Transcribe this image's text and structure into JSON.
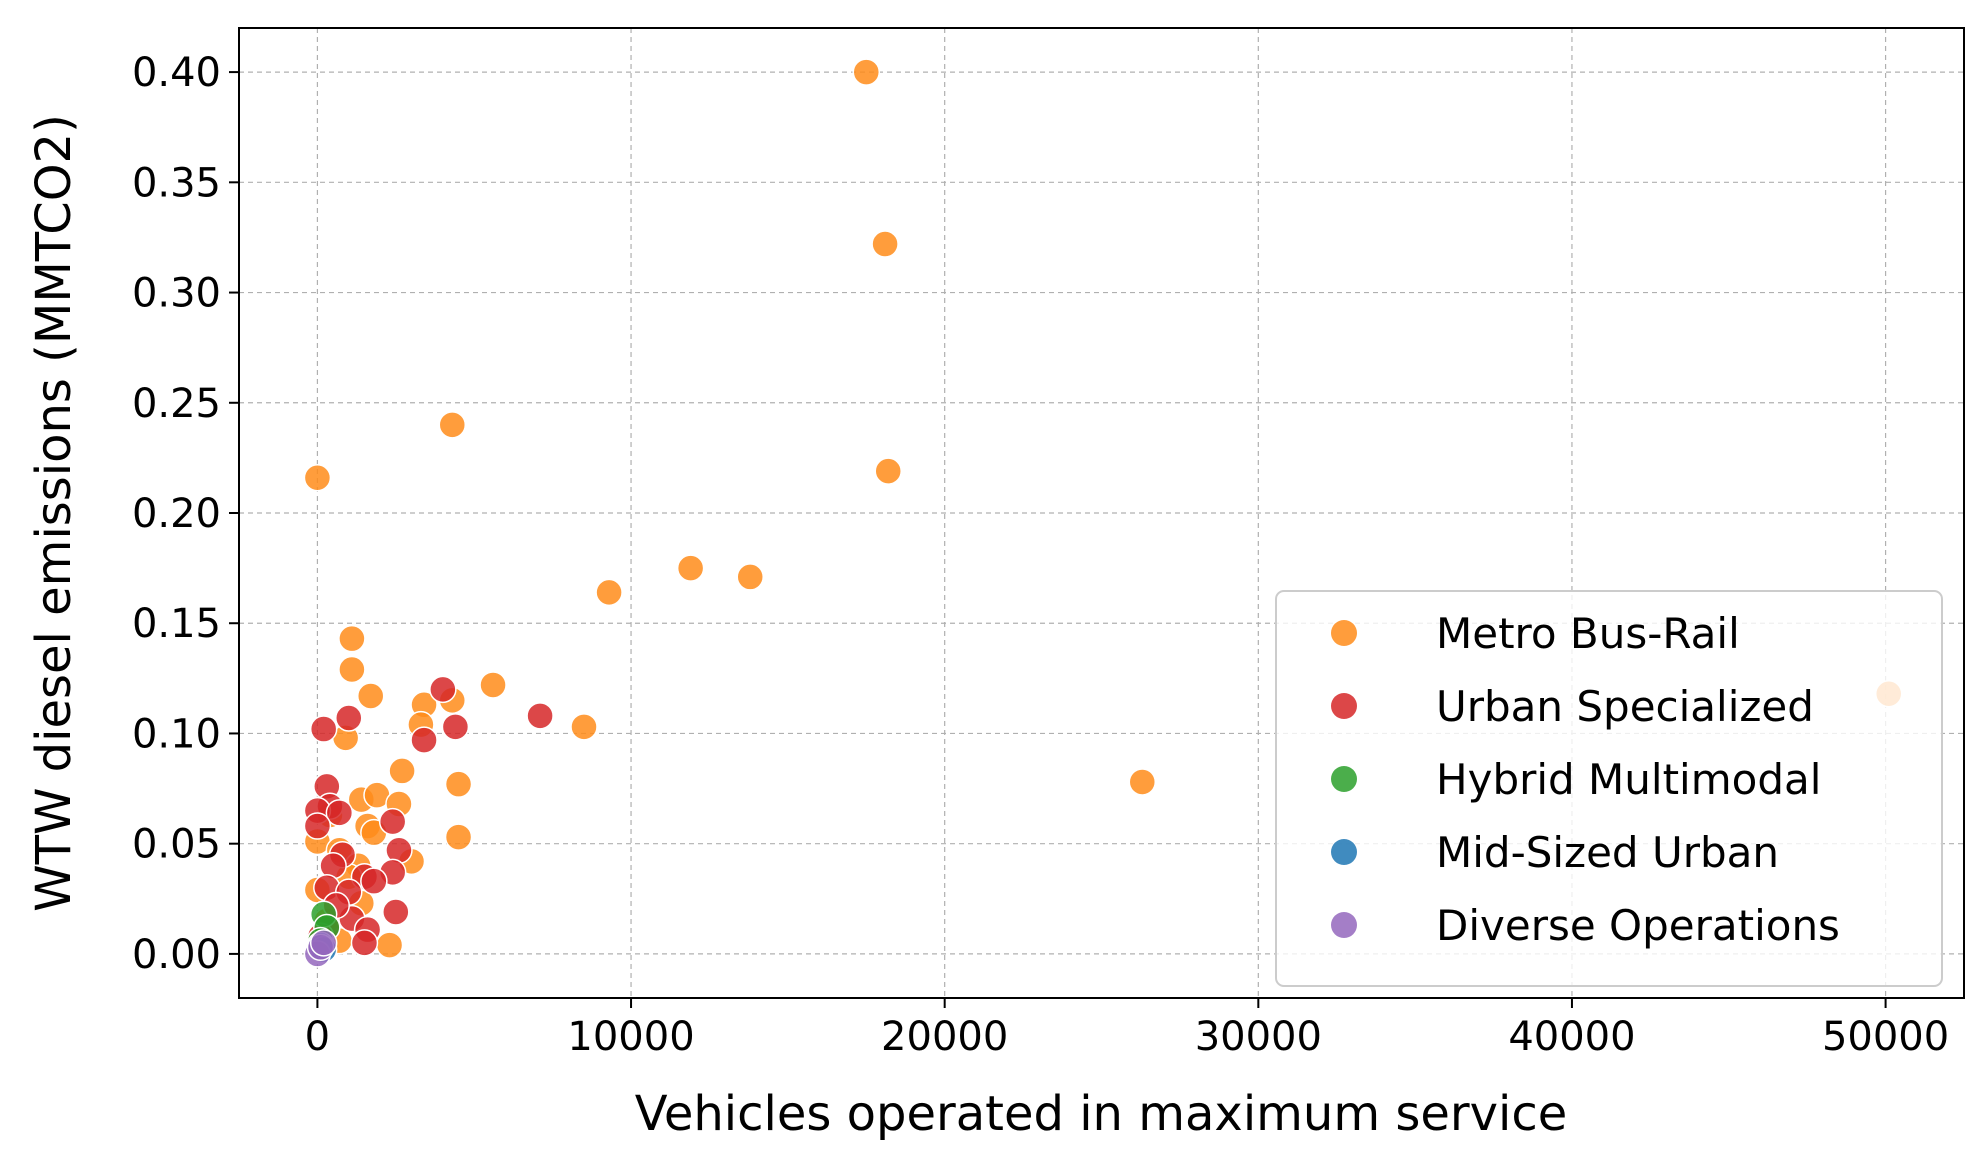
{
  "chart_data": {
    "type": "scatter",
    "xlabel": "Vehicles operated in maximum service",
    "ylabel": "WTW diesel emissions (MMTCO2)",
    "xlim": [
      -2500,
      52500
    ],
    "ylim": [
      -0.02,
      0.42
    ],
    "x_ticks": [
      0,
      10000,
      20000,
      30000,
      40000,
      50000
    ],
    "y_ticks": [
      "0.00",
      "0.05",
      "0.10",
      "0.15",
      "0.20",
      "0.25",
      "0.30",
      "0.35",
      "0.40"
    ],
    "grid": true,
    "legend_position": "lower-right",
    "series": [
      {
        "name": "Metro Bus-Rail",
        "color": "#ff8c1a",
        "points": [
          [
            17500,
            0.4
          ],
          [
            18100,
            0.322
          ],
          [
            4300,
            0.24
          ],
          [
            18200,
            0.219
          ],
          [
            0,
            0.216
          ],
          [
            11900,
            0.175
          ],
          [
            13800,
            0.171
          ],
          [
            9300,
            0.164
          ],
          [
            1100,
            0.143
          ],
          [
            1100,
            0.129
          ],
          [
            5600,
            0.122
          ],
          [
            50100,
            0.118
          ],
          [
            1700,
            0.117
          ],
          [
            4300,
            0.115
          ],
          [
            3400,
            0.113
          ],
          [
            3300,
            0.104
          ],
          [
            8500,
            0.103
          ],
          [
            900,
            0.098
          ],
          [
            2700,
            0.083
          ],
          [
            26300,
            0.078
          ],
          [
            4500,
            0.077
          ],
          [
            1400,
            0.07
          ],
          [
            1900,
            0.072
          ],
          [
            2600,
            0.068
          ],
          [
            400,
            0.063
          ],
          [
            1600,
            0.058
          ],
          [
            1800,
            0.055
          ],
          [
            4500,
            0.053
          ],
          [
            0,
            0.051
          ],
          [
            700,
            0.047
          ],
          [
            1300,
            0.04
          ],
          [
            3000,
            0.042
          ],
          [
            0,
            0.029
          ],
          [
            1400,
            0.023
          ],
          [
            700,
            0.006
          ],
          [
            2300,
            0.004
          ],
          [
            300,
            0.015
          ],
          [
            1000,
            0.035
          ]
        ]
      },
      {
        "name": "Urban Specialized",
        "color": "#d62728",
        "points": [
          [
            4000,
            0.12
          ],
          [
            7100,
            0.108
          ],
          [
            1000,
            0.107
          ],
          [
            4400,
            0.103
          ],
          [
            200,
            0.102
          ],
          [
            3400,
            0.097
          ],
          [
            300,
            0.076
          ],
          [
            400,
            0.067
          ],
          [
            0,
            0.065
          ],
          [
            700,
            0.064
          ],
          [
            0,
            0.058
          ],
          [
            2400,
            0.06
          ],
          [
            2600,
            0.047
          ],
          [
            800,
            0.045
          ],
          [
            500,
            0.04
          ],
          [
            2400,
            0.037
          ],
          [
            1500,
            0.035
          ],
          [
            1800,
            0.033
          ],
          [
            300,
            0.03
          ],
          [
            1000,
            0.028
          ],
          [
            2500,
            0.019
          ],
          [
            1100,
            0.016
          ],
          [
            300,
            0.012
          ],
          [
            1600,
            0.011
          ],
          [
            1500,
            0.005
          ],
          [
            100,
            0.008
          ],
          [
            600,
            0.022
          ]
        ]
      },
      {
        "name": "Hybrid Multimodal",
        "color": "#2ca02c",
        "points": [
          [
            200,
            0.018
          ],
          [
            300,
            0.012
          ],
          [
            100,
            0.006
          ]
        ]
      },
      {
        "name": "Mid-Sized Urban",
        "color": "#1f77b4",
        "points": [
          [
            100,
            0.004
          ],
          [
            200,
            0.002
          ]
        ]
      },
      {
        "name": "Diverse Operations",
        "color": "#9467bd",
        "points": [
          [
            0,
            0.0
          ],
          [
            100,
            0.003
          ],
          [
            200,
            0.005
          ]
        ]
      }
    ]
  }
}
